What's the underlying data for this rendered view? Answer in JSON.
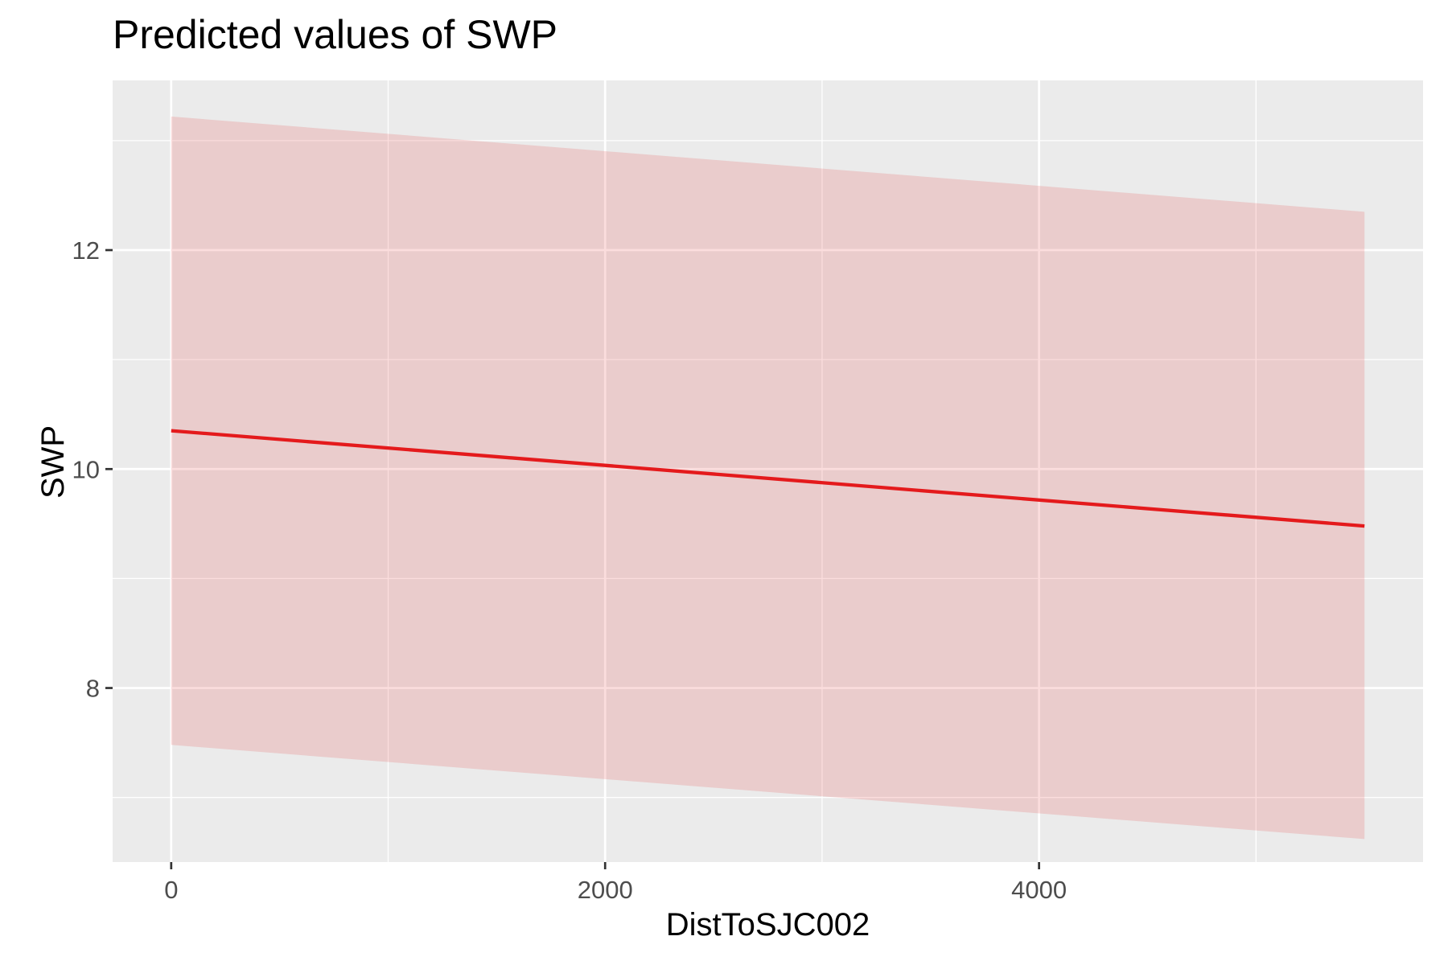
{
  "chart_data": {
    "type": "line",
    "title": "Predicted values of SWP",
    "xlabel": "DistToSJC002",
    "ylabel": "SWP",
    "x": [
      0,
      5500
    ],
    "series": [
      {
        "values": [
          10.35,
          9.48
        ],
        "ci_low": [
          7.48,
          6.62
        ],
        "ci_high": [
          13.22,
          12.35
        ]
      }
    ],
    "xlim": [
      -270,
      5770
    ],
    "ylim": [
      6.41,
      13.55
    ],
    "x_ticks": [
      0,
      2000,
      4000
    ],
    "x_tick_labels": [
      "0",
      "2000",
      "4000"
    ],
    "x_minor_ticks": [
      1000,
      3000,
      5000
    ],
    "y_ticks": [
      8,
      10,
      12
    ],
    "y_tick_labels": [
      "8",
      "10",
      "12"
    ],
    "y_minor_ticks": [
      7,
      9,
      11,
      13
    ],
    "grid": true,
    "colors": {
      "line": "#E41A1C",
      "ribbon": "#E41A1C",
      "panel": "#EBEBEB",
      "grid": "#FFFFFF",
      "tick_text": "#4D4D4D"
    }
  }
}
